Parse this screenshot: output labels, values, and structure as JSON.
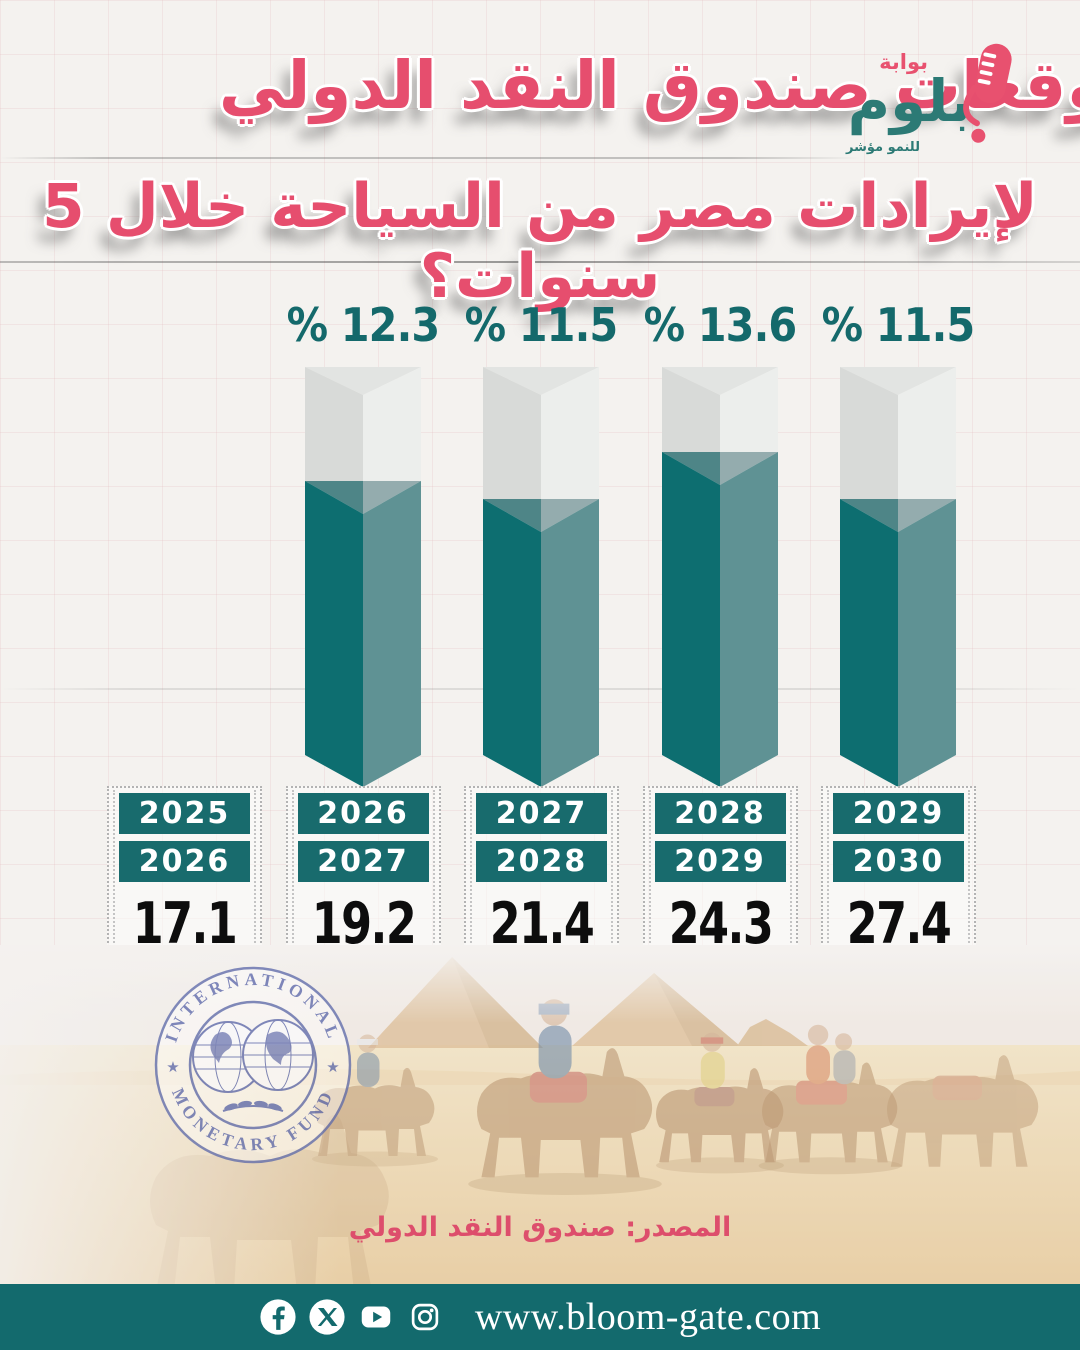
{
  "header": {
    "title_line1": "ما توقعات صندوق النقد الدولي",
    "title_line2": "لإيرادات مصر من السياحة خلال 5 سنوات؟",
    "logo": {
      "gate_label": "بوابة",
      "brand": "بلوم",
      "tagline": "للنمو مؤشر",
      "icon": "microphone-icon"
    }
  },
  "chart_data": {
    "type": "bar",
    "title": "توقعات صندوق النقد الدولي لإيرادات مصر من السياحة خلال 5 سنوات",
    "growth_labels": [
      "% 12.3",
      "% 11.5",
      "% 13.6",
      "% 11.5"
    ],
    "growth_percents": [
      12.3,
      11.5,
      13.6,
      11.5
    ],
    "bar_over_column_index": [
      1,
      2,
      3,
      4
    ],
    "columns": [
      {
        "years": [
          "2025",
          "2026"
        ],
        "value": "17.1"
      },
      {
        "years": [
          "2026",
          "2027"
        ],
        "value": "19.2"
      },
      {
        "years": [
          "2027",
          "2028"
        ],
        "value": "21.4"
      },
      {
        "years": [
          "2028",
          "2029"
        ],
        "value": "24.3"
      },
      {
        "years": [
          "2029",
          "2030"
        ],
        "value": "27.4"
      }
    ],
    "legend_position": "none",
    "grid": "faint-graph-paper"
  },
  "imf_logo": {
    "text_top": "INTERNATIONAL",
    "text_bottom": "MONETARY FUND"
  },
  "source": {
    "label": "المصدر: صندوق النقد الدولي"
  },
  "footer": {
    "website": "www.bloom-gate.com",
    "icons": [
      "facebook-icon",
      "x-icon",
      "youtube-icon",
      "instagram-icon"
    ]
  },
  "colors": {
    "accent_pink": "#e64e6e",
    "teal_text": "#14696b",
    "pill_teal": "#186b6d",
    "bar_teal_left": "#0d6e70",
    "bar_teal_right": "#5f9294",
    "bar_gray_left": "#d8dad8",
    "bar_gray_right": "#eceeec",
    "footer_teal": "#136a6d",
    "imf_blue": "#5e6aac",
    "value_black": "#0d0d0d"
  }
}
